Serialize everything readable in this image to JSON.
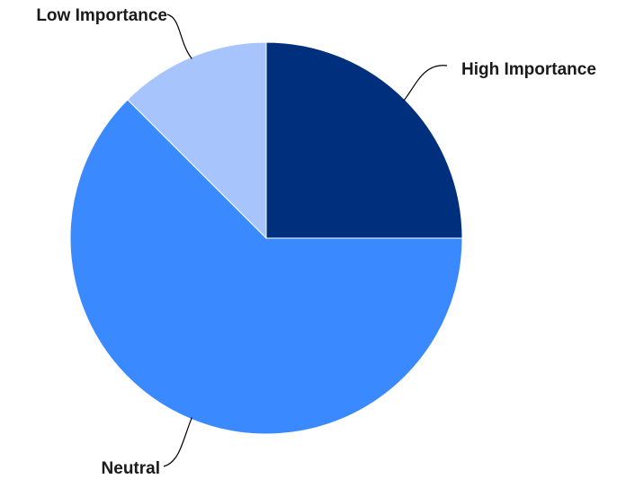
{
  "chart_data": {
    "type": "pie",
    "title": "",
    "slices": [
      {
        "label": "High Importance",
        "value": 25,
        "color": "#002f7e"
      },
      {
        "label": "Neutral",
        "value": 62.5,
        "color": "#3a89ff"
      },
      {
        "label": "Low Importance",
        "value": 12.5,
        "color": "#a7c5fc"
      }
    ],
    "start_angle": "12 o'clock",
    "direction": "clockwise",
    "legend": "none",
    "labels": "outside with leader lines"
  }
}
